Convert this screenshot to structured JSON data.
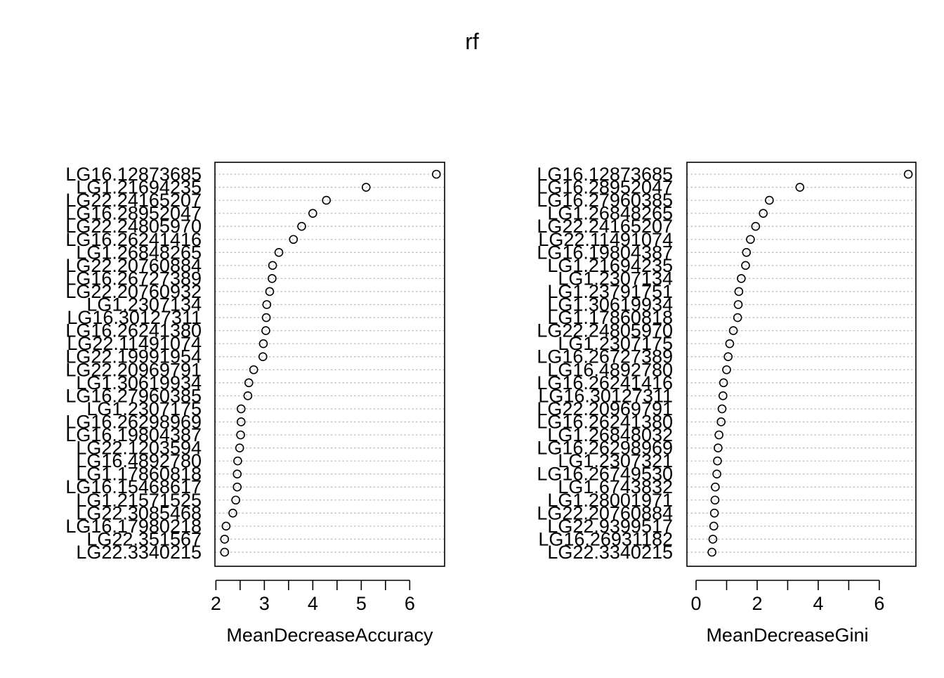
{
  "title": "rf",
  "chart_data": [
    {
      "type": "scatter",
      "style": "dotchart",
      "xlabel": "MeanDecreaseAccuracy",
      "xticks": [
        2,
        3,
        4,
        5,
        6
      ],
      "xlim": [
        1.98,
        6.72
      ],
      "grid": "dotted horizontal lines",
      "marker": "open-circle",
      "categories": [
        "LG16.12873685",
        "LG1.21694235",
        "LG22.24165207",
        "LG16.28952047",
        "LG22.24805970",
        "LG16.26241416",
        "LG1.26848265",
        "LG22.20760884",
        "LG16.26727389",
        "LG22.20760932",
        "LG1.2307134",
        "LG16.30127311",
        "LG16.26241380",
        "LG22.11491074",
        "LG22.19991954",
        "LG22.20969791",
        "LG1.30619934",
        "LG16.27960385",
        "LG1.2307175",
        "LG16.26298969",
        "LG16.19804387",
        "LG22.1203594",
        "LG16.4892780",
        "LG1.17860818",
        "LG16.15468617",
        "LG1.21571525",
        "LG22.3085468",
        "LG16.17980218",
        "LG22.351567",
        "LG22.3340215"
      ],
      "values": [
        6.55,
        5.1,
        4.28,
        4.0,
        3.77,
        3.6,
        3.3,
        3.17,
        3.16,
        3.11,
        3.05,
        3.04,
        3.03,
        2.98,
        2.97,
        2.78,
        2.68,
        2.66,
        2.52,
        2.52,
        2.51,
        2.49,
        2.45,
        2.44,
        2.44,
        2.41,
        2.35,
        2.21,
        2.18,
        2.18
      ]
    },
    {
      "type": "scatter",
      "style": "dotchart",
      "xlabel": "MeanDecreaseGini",
      "xticks": [
        0,
        2,
        4,
        6
      ],
      "xlim": [
        -0.3,
        7.2
      ],
      "grid": "dotted horizontal lines",
      "marker": "open-circle",
      "categories": [
        "LG16.12873685",
        "LG16.28952047",
        "LG16.27960385",
        "LG1.26848265",
        "LG22.24165207",
        "LG22.11491074",
        "LG16.19804387",
        "LG1.21694235",
        "LG1.2307134",
        "LG1.23791751",
        "LG1.30619934",
        "LG1.17860818",
        "LG22.24805970",
        "LG1.2307175",
        "LG16.26727389",
        "LG16.4892780",
        "LG16.26241416",
        "LG16.30127311",
        "LG22.20969791",
        "LG16.26241380",
        "LG1.26848032",
        "LG16.26298969",
        "LG1.2307321",
        "LG16.26749530",
        "LG1.6743832",
        "LG1.28001971",
        "LG22.20760884",
        "LG22.9399517",
        "LG16.26931182",
        "LG22.3340215"
      ],
      "values": [
        6.95,
        3.4,
        2.4,
        2.2,
        1.95,
        1.78,
        1.65,
        1.62,
        1.48,
        1.4,
        1.38,
        1.36,
        1.22,
        1.1,
        1.05,
        1.0,
        0.9,
        0.88,
        0.85,
        0.82,
        0.75,
        0.72,
        0.7,
        0.68,
        0.63,
        0.62,
        0.6,
        0.58,
        0.55,
        0.52
      ]
    }
  ]
}
